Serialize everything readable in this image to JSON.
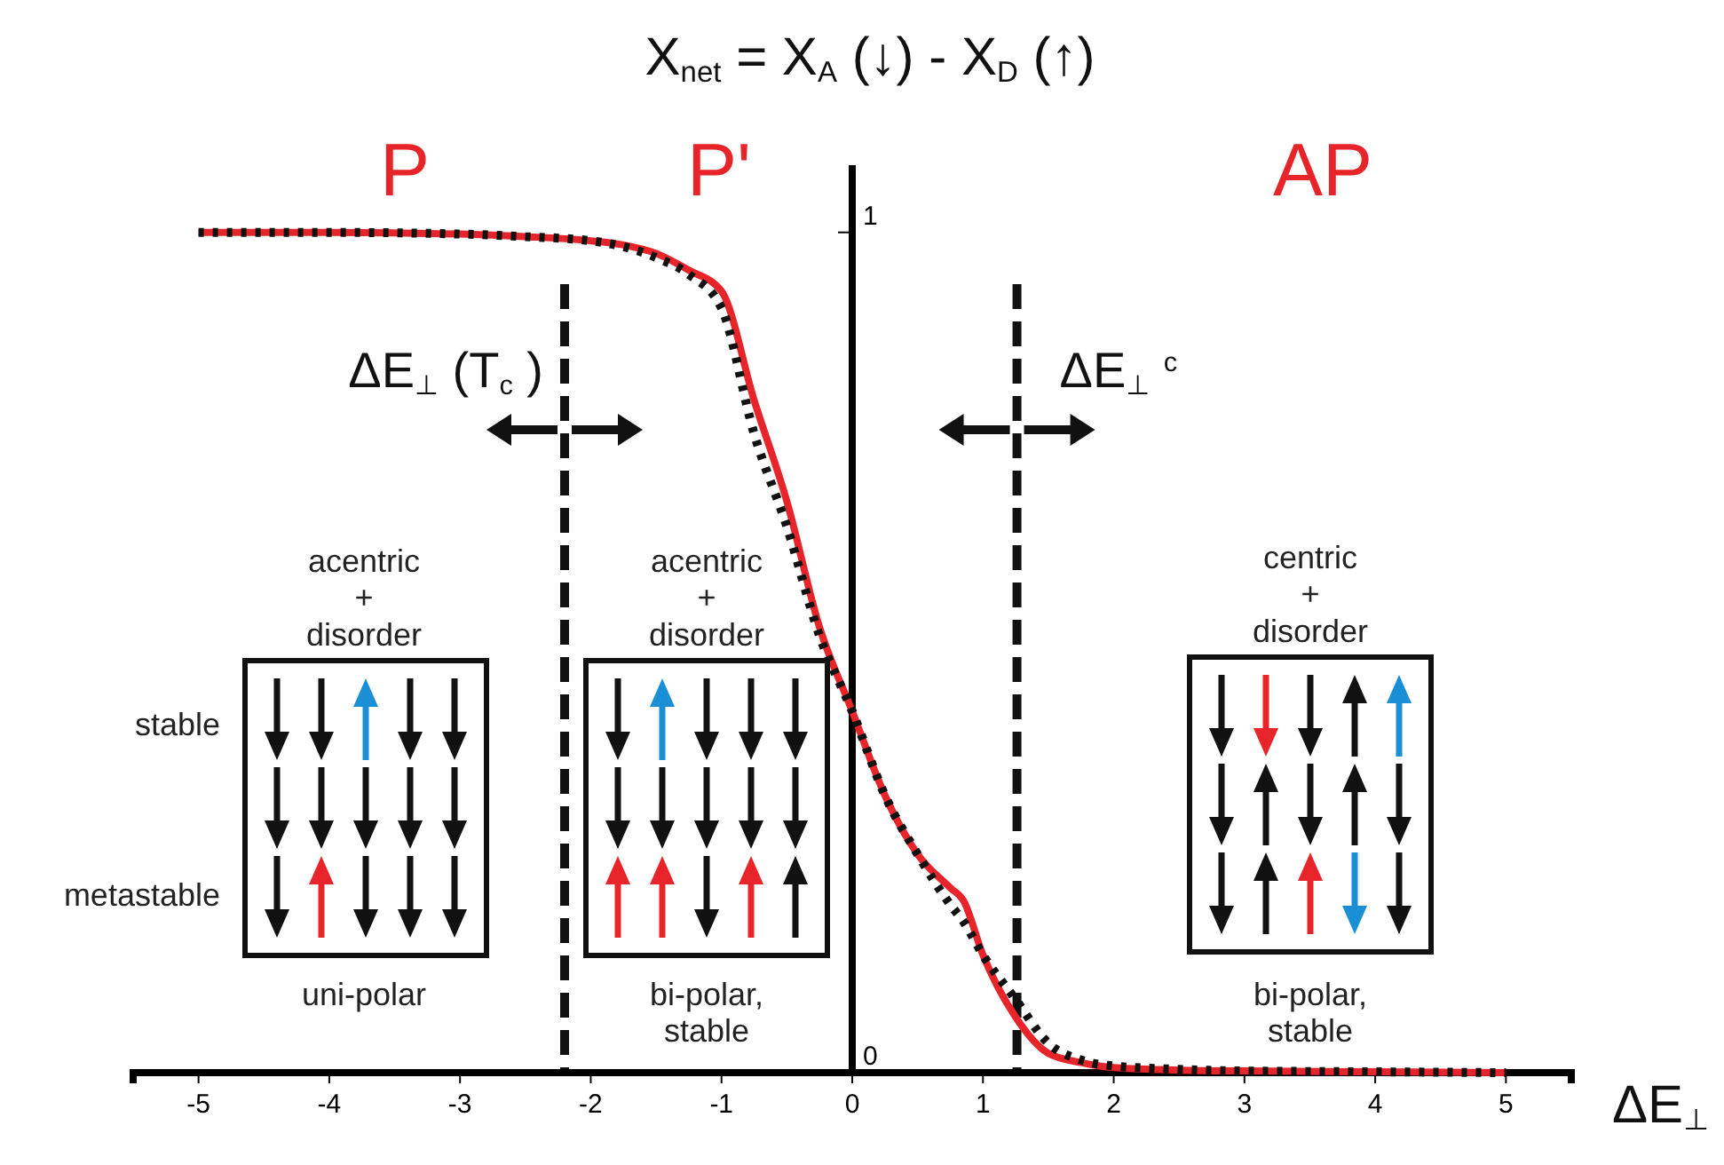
{
  "chart_data": {
    "type": "line",
    "title": "X$_{net}$ = X$_{A}$ (↓) -  X$_{D}$ (↑)",
    "xlabel": "ΔE$_{⊥}$",
    "x": [
      -5,
      -4,
      -3,
      -2.5,
      -2,
      -1.75,
      -1.5,
      -1.25,
      -1,
      -0.75,
      -0.5,
      -0.25,
      0,
      0.25,
      0.5,
      0.75,
      0.85,
      1,
      1.25,
      1.5,
      1.75,
      2,
      2.5,
      3,
      4,
      5
    ],
    "series": [
      {
        "color": "#e8242b",
        "line_style": "solid",
        "values": [
          1,
          1,
          0.998,
          0.995,
          0.99,
          0.985,
          0.975,
          0.955,
          0.93,
          0.8,
          0.68,
          0.53,
          0.43,
          0.33,
          0.26,
          0.22,
          0.205,
          0.14,
          0.066,
          0.023,
          0.012,
          0.006,
          0.003,
          0.002,
          0.001,
          0
        ]
      },
      {
        "color": "#111111",
        "line_style": "dotted",
        "values": [
          1,
          1,
          0.998,
          0.995,
          0.99,
          0.983,
          0.97,
          0.95,
          0.91,
          0.76,
          0.65,
          0.52,
          0.43,
          0.33,
          0.26,
          0.2,
          0.18,
          0.14,
          0.087,
          0.035,
          0.015,
          0.008,
          0.004,
          0.002,
          0.001,
          0
        ]
      }
    ],
    "xlim": [
      -5.5,
      5.5
    ],
    "xticks": [
      -5,
      -4,
      -3,
      -2,
      -1,
      0,
      1,
      2,
      3,
      4,
      5
    ],
    "ylim": [
      0,
      1.08
    ],
    "yticks": [
      0,
      1
    ],
    "ref_lines": [
      {
        "axis": "x",
        "value": -2.2,
        "label": "ΔE$_{⊥}$(T$_{c}$)",
        "color": "#111111",
        "line_style": "dashed"
      },
      {
        "axis": "x",
        "value": 1.26,
        "label": "ΔE$_{⊥}$$^{c}$",
        "color": "#111111",
        "line_style": "dashed"
      }
    ],
    "annotations": [
      "P",
      "P'",
      "AP",
      "acentric\n+\ndisorder",
      "stable",
      "metastable",
      "uni-polar",
      "acentric\n+\ndisorder",
      "bi-polar,\nstable",
      "centric\n+\ndisorder",
      "bi-polar,\nstable"
    ],
    "grid": false
  }
}
